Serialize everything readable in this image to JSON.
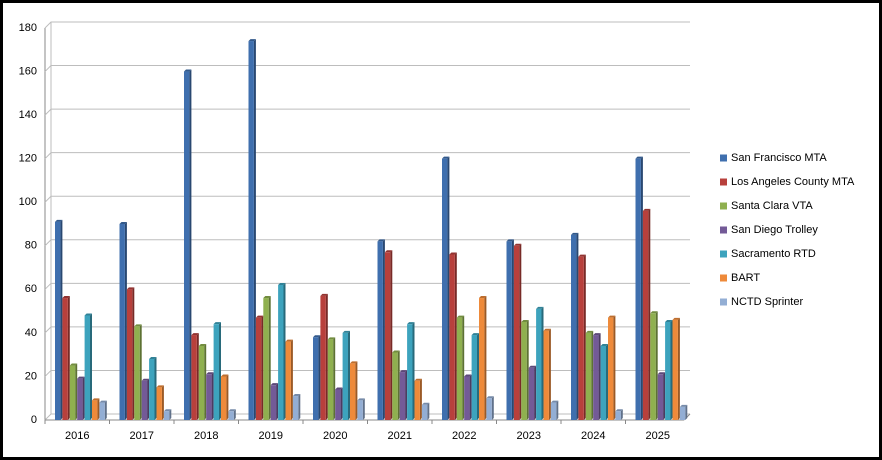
{
  "chart_data": {
    "type": "bar",
    "categories": [
      "2016",
      "2017",
      "2018",
      "2019",
      "2020",
      "2021",
      "2022",
      "2023",
      "2024",
      "2025"
    ],
    "series": [
      {
        "name": "San Francisco MTA",
        "color": "#3f6fae",
        "values": [
          91,
          90,
          160,
          174,
          38,
          82,
          120,
          82,
          85,
          120
        ]
      },
      {
        "name": "Los Angeles County MTA",
        "color": "#b8403c",
        "values": [
          56,
          60,
          39,
          47,
          57,
          77,
          76,
          80,
          75,
          96
        ]
      },
      {
        "name": "Santa Clara VTA",
        "color": "#8fb04f",
        "values": [
          25,
          43,
          34,
          56,
          37,
          31,
          47,
          45,
          40,
          49
        ]
      },
      {
        "name": "San Diego Trolley",
        "color": "#735a97",
        "values": [
          19,
          18,
          21,
          16,
          14,
          22,
          20,
          24,
          39,
          21
        ]
      },
      {
        "name": "Sacramento RTD",
        "color": "#3da3bd",
        "values": [
          48,
          28,
          44,
          62,
          40,
          44,
          39,
          51,
          34,
          45
        ]
      },
      {
        "name": "BART",
        "color": "#ee8a3a",
        "values": [
          9,
          15,
          20,
          36,
          26,
          18,
          56,
          41,
          47,
          46
        ]
      },
      {
        "name": "NCTD Sprinter",
        "color": "#93aed4",
        "values": [
          8,
          4,
          4,
          11,
          9,
          7,
          10,
          8,
          4,
          6
        ]
      }
    ],
    "ylim": [
      0,
      180
    ],
    "yticks": [
      0,
      20,
      40,
      60,
      80,
      100,
      120,
      140,
      160,
      180
    ],
    "grid": true,
    "legend": "right"
  }
}
